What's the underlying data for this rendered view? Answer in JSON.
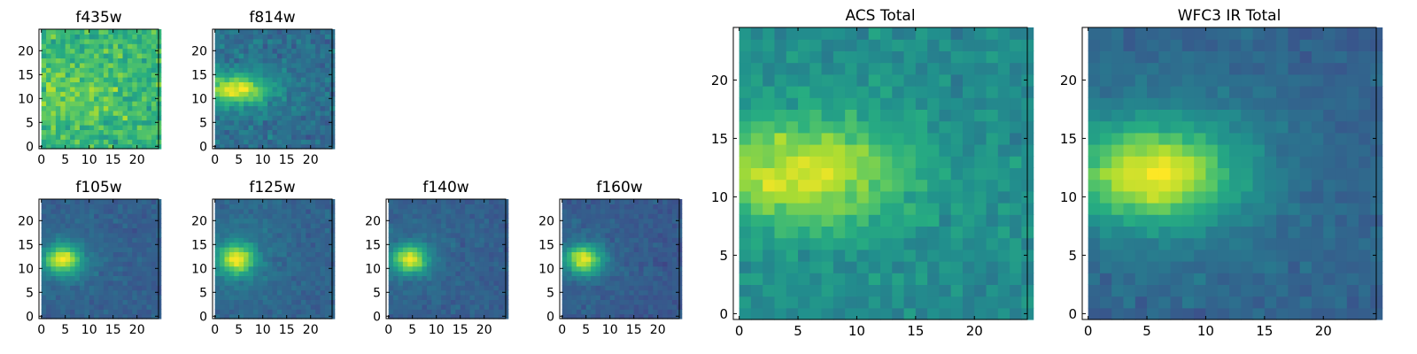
{
  "chart_data": [
    {
      "type": "heatmap",
      "title": "f435w",
      "grid": false,
      "xlim": [
        -0.5,
        24.5
      ],
      "ylim": [
        -0.5,
        24.5
      ],
      "xticks": [
        0,
        5,
        10,
        15,
        20
      ],
      "yticks": [
        0,
        5,
        10,
        15,
        20
      ],
      "colormap": "viridis",
      "structure": {
        "kind": "noise",
        "cx": 6,
        "cy": 12,
        "sx": 7,
        "sy": 4,
        "amp": 0.12,
        "base": 0.66,
        "bg": 0.66,
        "noise": 0.22,
        "seed": 11
      }
    },
    {
      "type": "heatmap",
      "title": "f814w",
      "grid": false,
      "xlim": [
        -0.5,
        24.5
      ],
      "ylim": [
        -0.5,
        24.5
      ],
      "xticks": [
        0,
        5,
        10,
        15,
        20
      ],
      "yticks": [
        0,
        5,
        10,
        15,
        20
      ],
      "colormap": "viridis",
      "structure": {
        "kind": "blob",
        "cx": 4,
        "cy": 12,
        "sx": 4.5,
        "sy": 2.2,
        "amp": 0.55,
        "base": 0.42,
        "bg": 0.35,
        "noise": 0.14,
        "seed": 23
      }
    },
    {
      "type": "heatmap",
      "title": "f105w",
      "grid": false,
      "xlim": [
        -0.5,
        24.5
      ],
      "ylim": [
        -0.5,
        24.5
      ],
      "xticks": [
        0,
        5,
        10,
        15,
        20
      ],
      "yticks": [
        0,
        5,
        10,
        15,
        20
      ],
      "colormap": "viridis",
      "structure": {
        "kind": "blob",
        "cx": 4,
        "cy": 12,
        "sx": 2.6,
        "sy": 2.0,
        "amp": 0.62,
        "base": 0.38,
        "bg": 0.3,
        "noise": 0.08,
        "seed": 37
      }
    },
    {
      "type": "heatmap",
      "title": "f125w",
      "grid": false,
      "xlim": [
        -0.5,
        24.5
      ],
      "ylim": [
        -0.5,
        24.5
      ],
      "xticks": [
        0,
        5,
        10,
        15,
        20
      ],
      "yticks": [
        0,
        5,
        10,
        15,
        20
      ],
      "colormap": "viridis",
      "structure": {
        "kind": "blob",
        "cx": 4,
        "cy": 12,
        "sx": 2.6,
        "sy": 2.2,
        "amp": 0.6,
        "base": 0.4,
        "bg": 0.32,
        "noise": 0.08,
        "seed": 41
      }
    },
    {
      "type": "heatmap",
      "title": "f140w",
      "grid": false,
      "xlim": [
        -0.5,
        24.5
      ],
      "ylim": [
        -0.5,
        24.5
      ],
      "xticks": [
        0,
        5,
        10,
        15,
        20
      ],
      "yticks": [
        0,
        5,
        10,
        15,
        20
      ],
      "colormap": "viridis",
      "structure": {
        "kind": "blob",
        "cx": 4,
        "cy": 12,
        "sx": 2.5,
        "sy": 2.0,
        "amp": 0.6,
        "base": 0.38,
        "bg": 0.3,
        "noise": 0.08,
        "seed": 53
      }
    },
    {
      "type": "heatmap",
      "title": "f160w",
      "grid": false,
      "xlim": [
        -0.5,
        24.5
      ],
      "ylim": [
        -0.5,
        24.5
      ],
      "xticks": [
        0,
        5,
        10,
        15,
        20
      ],
      "yticks": [
        0,
        5,
        10,
        15,
        20
      ],
      "colormap": "viridis",
      "structure": {
        "kind": "blob",
        "cx": 4,
        "cy": 12,
        "sx": 2.6,
        "sy": 2.0,
        "amp": 0.62,
        "base": 0.36,
        "bg": 0.28,
        "noise": 0.08,
        "seed": 67
      }
    },
    {
      "type": "heatmap",
      "title": "ACS Total",
      "grid": false,
      "xlim": [
        -0.5,
        24.5
      ],
      "ylim": [
        -0.5,
        24.5
      ],
      "xticks": [
        0,
        5,
        10,
        15,
        20
      ],
      "yticks": [
        0,
        5,
        10,
        15,
        20
      ],
      "colormap": "viridis",
      "structure": {
        "kind": "blob",
        "cx": 5,
        "cy": 12,
        "sx": 6,
        "sy": 3.2,
        "amp": 0.45,
        "base": 0.5,
        "bg": 0.48,
        "noise": 0.13,
        "seed": 79
      }
    },
    {
      "type": "heatmap",
      "title": "WFC3 IR Total",
      "grid": false,
      "xlim": [
        -0.5,
        24.5
      ],
      "ylim": [
        -0.5,
        24.5
      ],
      "xticks": [
        0,
        5,
        10,
        15,
        20
      ],
      "yticks": [
        0,
        5,
        10,
        15,
        20
      ],
      "colormap": "viridis",
      "structure": {
        "kind": "blob",
        "cx": 5,
        "cy": 12,
        "sx": 5.0,
        "sy": 3.0,
        "amp": 0.6,
        "base": 0.38,
        "bg": 0.3,
        "noise": 0.08,
        "seed": 97
      }
    }
  ]
}
